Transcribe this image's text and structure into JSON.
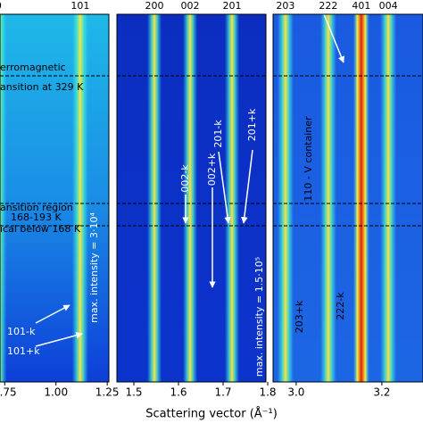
{
  "chart_data": [
    {
      "type": "heatmap",
      "xlim": [
        0.727,
        1.258
      ],
      "xticks": [
        0.75,
        {
          "value": 1,
          "label": "1.00"
        },
        1.25
      ],
      "peaks": [
        {
          "label": "0",
          "x": 0.72
        },
        {
          "label": "101",
          "x": 1.118
        }
      ],
      "annotations": [
        "erromagnetic",
        "ansition at 329 K",
        "ansition region",
        "168-193 K",
        "ical below 168 K",
        "101-k",
        "101+k",
        "max. intensity = 3·10⁴"
      ]
    },
    {
      "type": "heatmap",
      "xlim": [
        1.462,
        1.796
      ],
      "xticks": [
        1.5,
        1.6,
        1.7,
        1.8
      ],
      "peaks": [
        {
          "label": "200",
          "x": 1.546
        },
        {
          "label": "002",
          "x": 1.626
        },
        {
          "label": "201",
          "x": 1.72
        }
      ],
      "annotations": [
        "002-k",
        "002+k",
        "201-k",
        "201+k",
        "max. intensity = 1.5·10⁵"
      ]
    },
    {
      "type": "heatmap",
      "xlim": [
        2.946,
        3.296
      ],
      "xticks": [
        {
          "value": 3,
          "label": "3.0"
        },
        3.2
      ],
      "peaks": [
        {
          "label": "203",
          "x": 2.975
        },
        {
          "label": "222",
          "x": 3.075
        },
        {
          "label": "401",
          "x": 3.152
        },
        {
          "label": "004",
          "x": 3.215
        }
      ],
      "annotations": [
        "110 - V container",
        "203+k",
        "222-k"
      ]
    }
  ],
  "xlabel": "Scattering vector (Å⁻¹)"
}
